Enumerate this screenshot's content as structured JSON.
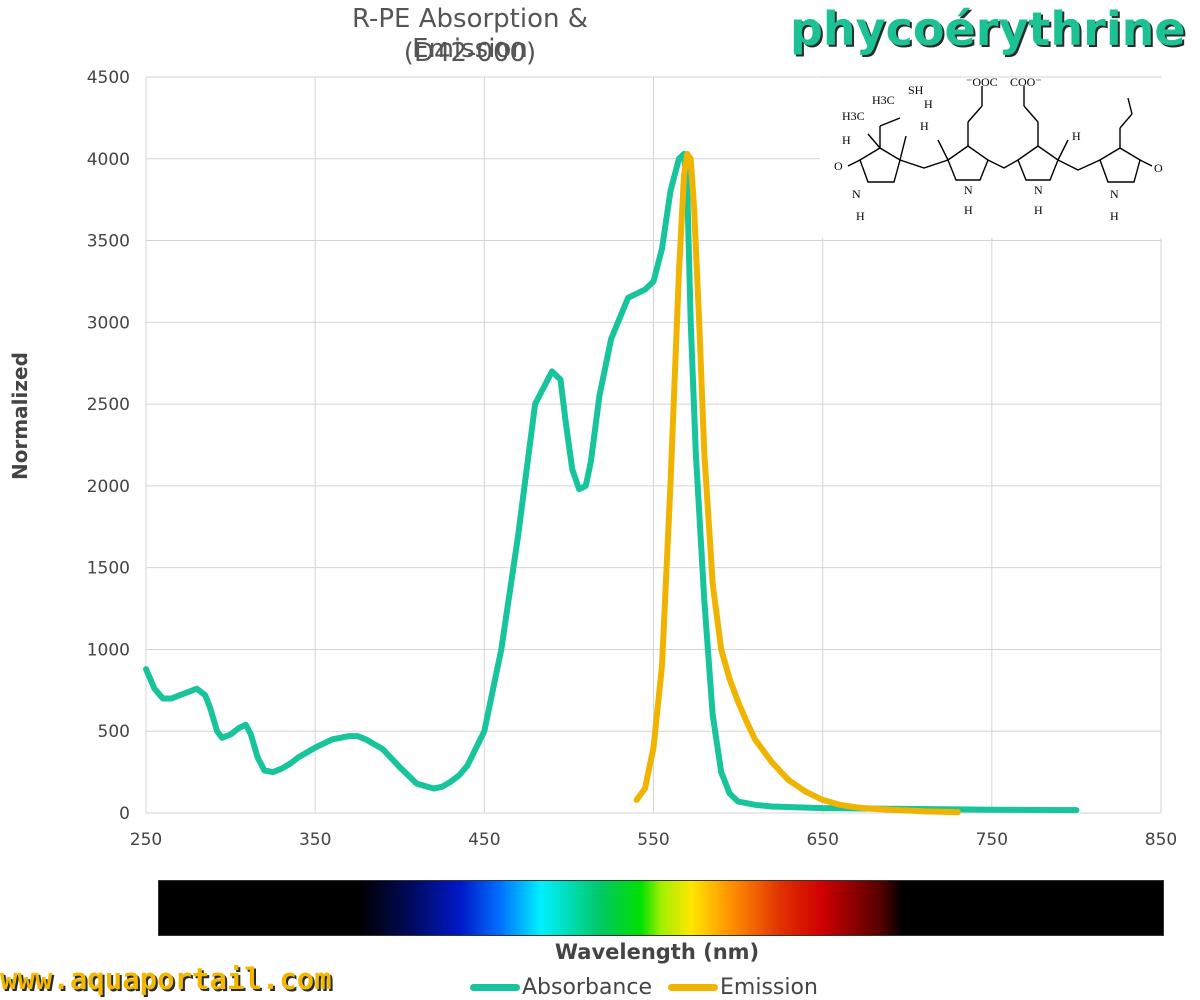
{
  "header": {
    "title_line1": "R-PE Absorption & Emission",
    "title_line2": "(D42-000)",
    "brand": "phycoérythrine",
    "website": "www.aquaportail.com"
  },
  "colors": {
    "absorbance": "#17c49c",
    "emission": "#f0b400",
    "grid": "#d4d4d4",
    "brand": "#1cc293"
  },
  "structure_labels": {
    "sh": "SH",
    "h3c_top": "H3C",
    "h3c_left": "H3C",
    "h": "H",
    "ooc": "⁻OOC",
    "coo": "COO⁻",
    "n": "N",
    "o": "O"
  },
  "chart_data": {
    "type": "line",
    "title": "R-PE Absorption & Emission (D42-000)",
    "xlabel": "Wavelength (nm)",
    "ylabel": "Normalized",
    "xlim": [
      250,
      850
    ],
    "ylim": [
      0,
      4500
    ],
    "xticks": [
      250,
      350,
      450,
      550,
      650,
      750,
      850
    ],
    "yticks": [
      0,
      500,
      1000,
      1500,
      2000,
      2500,
      3000,
      3500,
      4000,
      4500
    ],
    "grid": true,
    "legend_position": "bottom",
    "series": [
      {
        "name": "Absorbance",
        "color": "#17c49c",
        "x": [
          250,
          255,
          260,
          265,
          270,
          275,
          280,
          285,
          288,
          292,
          295,
          300,
          305,
          309,
          312,
          316,
          320,
          325,
          330,
          335,
          340,
          350,
          360,
          370,
          375,
          380,
          390,
          400,
          410,
          420,
          425,
          430,
          435,
          440,
          450,
          460,
          470,
          480,
          490,
          495,
          498,
          502,
          506,
          510,
          513,
          518,
          525,
          535,
          545,
          550,
          555,
          560,
          565,
          568,
          570,
          572,
          575,
          580,
          585,
          590,
          595,
          600,
          610,
          620,
          650,
          700,
          750,
          800
        ],
        "y": [
          880,
          760,
          700,
          700,
          720,
          740,
          760,
          720,
          640,
          500,
          460,
          480,
          520,
          540,
          480,
          340,
          260,
          250,
          270,
          300,
          340,
          400,
          450,
          470,
          470,
          450,
          390,
          280,
          180,
          150,
          160,
          190,
          230,
          290,
          500,
          1000,
          1700,
          2500,
          2700,
          2650,
          2400,
          2100,
          1980,
          2000,
          2150,
          2550,
          2900,
          3150,
          3200,
          3250,
          3450,
          3800,
          4000,
          4030,
          3800,
          3000,
          2200,
          1300,
          600,
          250,
          120,
          70,
          50,
          40,
          30,
          25,
          20,
          18
        ]
      },
      {
        "name": "Emission",
        "color": "#f0b400",
        "x": [
          540,
          545,
          550,
          555,
          560,
          565,
          568,
          570,
          572,
          574,
          577,
          580,
          585,
          590,
          595,
          600,
          605,
          610,
          620,
          630,
          640,
          650,
          660,
          670,
          680,
          690,
          700,
          710,
          720,
          730
        ],
        "y": [
          80,
          150,
          400,
          900,
          2000,
          3300,
          3900,
          4030,
          4000,
          3700,
          3000,
          2200,
          1400,
          1000,
          820,
          680,
          560,
          450,
          310,
          200,
          130,
          80,
          50,
          35,
          25,
          20,
          15,
          10,
          8,
          5
        ]
      }
    ]
  }
}
